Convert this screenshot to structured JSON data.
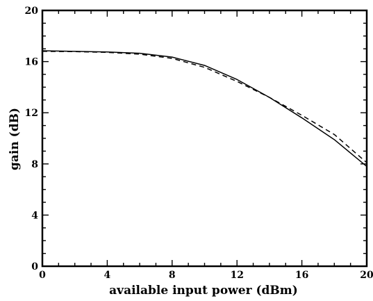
{
  "chart_data": {
    "type": "line",
    "title": "",
    "xlabel": "available input power (dBm)",
    "ylabel": "gain (dB)",
    "xlim": [
      0,
      20
    ],
    "ylim": [
      0,
      20
    ],
    "xticks": [
      0,
      4,
      8,
      12,
      16,
      20
    ],
    "yticks": [
      0,
      4,
      8,
      12,
      16,
      20
    ],
    "xtick_labels": [
      "0",
      "4",
      "8",
      "12",
      "16",
      "20"
    ],
    "ytick_labels": [
      "0",
      "4",
      "8",
      "12",
      "16",
      "20"
    ],
    "grid": false,
    "legend": "none",
    "series": [
      {
        "line_style": "solid",
        "color": "#000000",
        "x": [
          0,
          2,
          4,
          6,
          8,
          10,
          12,
          14,
          16,
          18,
          20
        ],
        "y": [
          16.85,
          16.8,
          16.75,
          16.65,
          16.35,
          15.7,
          14.6,
          13.2,
          11.6,
          9.9,
          7.8
        ]
      },
      {
        "line_style": "dashed",
        "color": "#000000",
        "x": [
          0,
          2,
          4,
          6,
          8,
          10,
          12,
          14,
          16,
          18,
          20
        ],
        "y": [
          16.8,
          16.78,
          16.72,
          16.58,
          16.25,
          15.55,
          14.45,
          13.2,
          11.8,
          10.3,
          8.1
        ]
      }
    ]
  }
}
